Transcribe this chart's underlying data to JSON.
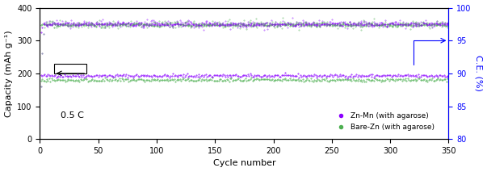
{
  "title": "",
  "xlabel": "Cycle number",
  "ylabel_left": "Capacity (mAh g⁻¹)",
  "ylabel_right": "C.E. (%)",
  "xlim": [
    0,
    350
  ],
  "ylim_left": [
    0,
    400
  ],
  "ylim_right": [
    80,
    100
  ],
  "xticks": [
    0,
    50,
    100,
    150,
    200,
    250,
    300,
    350
  ],
  "yticks_left": [
    0,
    100,
    200,
    300,
    400
  ],
  "yticks_right": [
    80,
    85,
    90,
    95,
    100
  ],
  "annotation_text": "0.5 C",
  "capacity_znmn_discharge": 193,
  "capacity_znmn_charge": 350,
  "capacity_barezn_discharge": 180,
  "capacity_barezn_charge": 348,
  "ce_znmn": 97.5,
  "ce_barezn": 97.5,
  "color_znmn": "#8B00FF",
  "color_barezn": "#4CAF50",
  "color_axis_right": "#0000FF",
  "n_cycles": 350,
  "noise_capacity": 2.5,
  "noise_ce": 0.3,
  "figsize": [
    6.03,
    2.13
  ],
  "dpi": 100,
  "legend_zn_mn": "Zn-Mn (with agarose)",
  "legend_bare_zn": "Bare-Zn (with agarose)"
}
